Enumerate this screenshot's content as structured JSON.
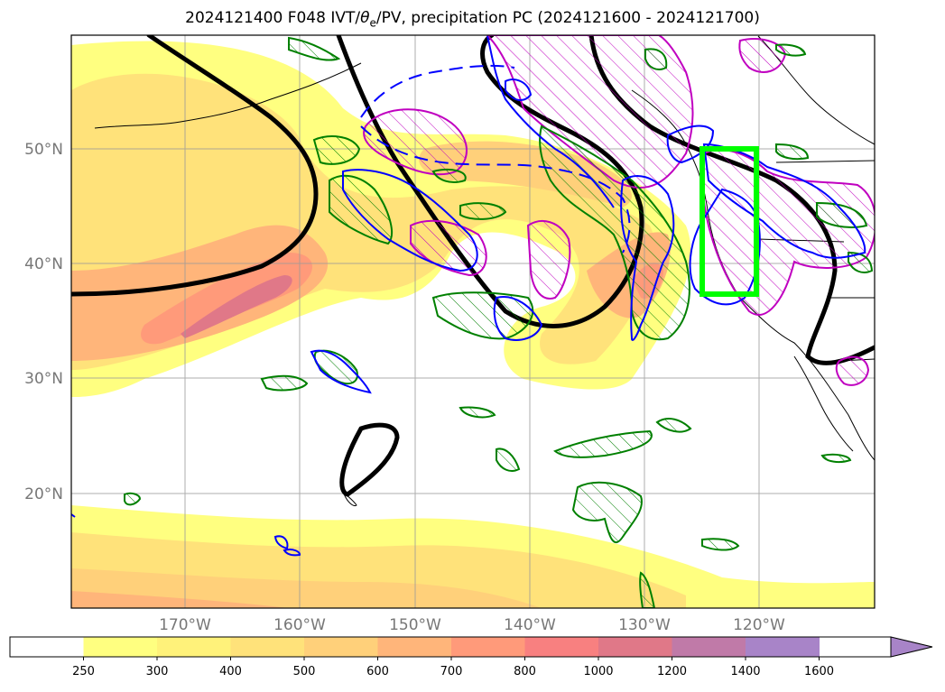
{
  "title_text": "2024121400 F048 IVT/",
  "title_symbol": "θ",
  "title_sub": "e",
  "title_rest": "/PV, precipitation PC (2024121600 - 2024121700)",
  "lat_labels": [
    "50°N",
    "40°N",
    "30°N",
    "20°N"
  ],
  "lon_labels": [
    "170°W",
    "160°W",
    "150°W",
    "140°W",
    "130°W",
    "120°W"
  ],
  "colorbar": {
    "ticks": [
      "250",
      "300",
      "400",
      "500",
      "600",
      "700",
      "800",
      "1000",
      "1200",
      "1400",
      "1600"
    ],
    "colors": [
      "#ffffff",
      "#ffff80",
      "#fff27a",
      "#ffe27a",
      "#ffd07a",
      "#ffb57a",
      "#ff9a7a",
      "#f88080",
      "#e07888",
      "#c07aa8",
      "#a884c8"
    ],
    "extend": "max"
  },
  "contour_colors": {
    "ivt_shading": "#ffb07a",
    "pv_black": "#000000",
    "green": "#008000",
    "blue": "#0000ff",
    "magenta": "#c000c0",
    "box": "#00ff00"
  }
}
